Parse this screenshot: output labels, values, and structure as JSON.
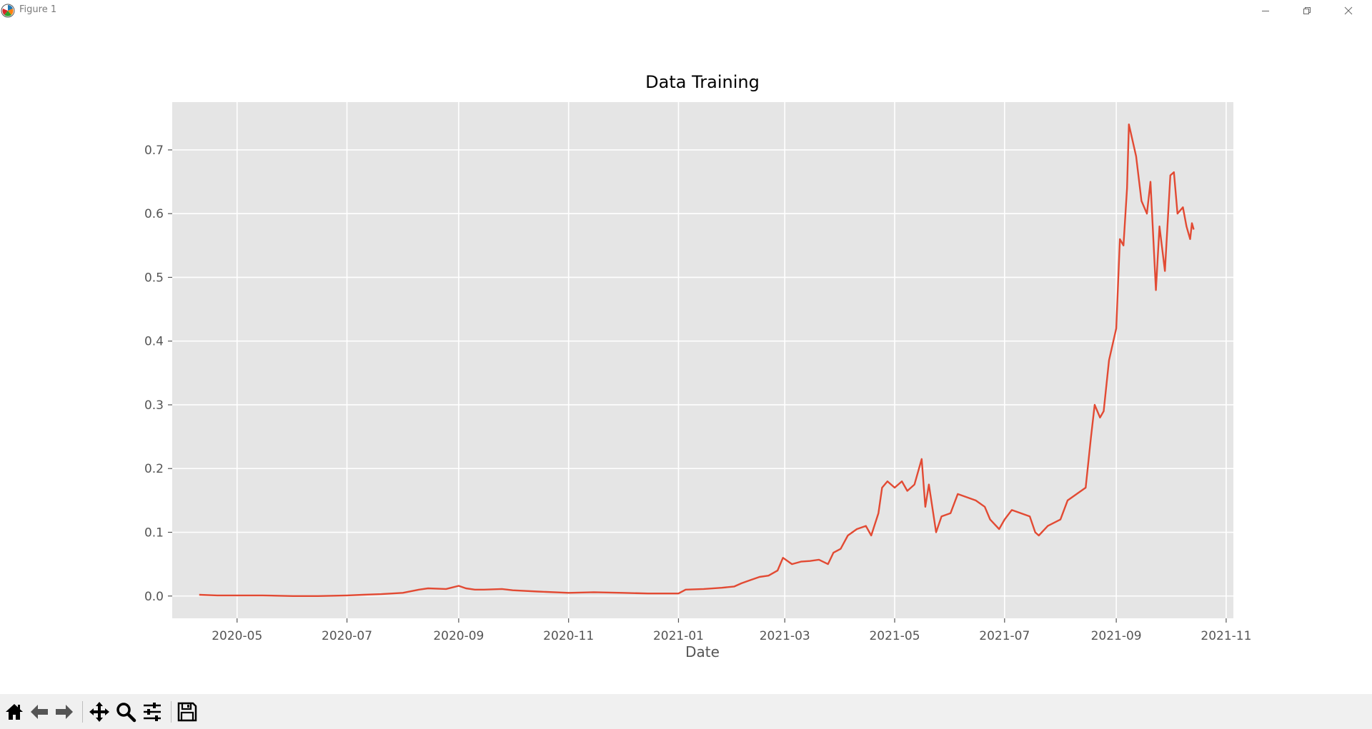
{
  "window": {
    "title": "Figure 1"
  },
  "toolbar": {
    "items": [
      {
        "name": "home-icon",
        "tooltip": "Reset original view"
      },
      {
        "name": "back-arrow-icon",
        "tooltip": "Back to previous view"
      },
      {
        "name": "forward-arrow-icon",
        "tooltip": "Forward to next view"
      },
      {
        "name": "pan-icon",
        "tooltip": "Pan axes"
      },
      {
        "name": "zoom-icon",
        "tooltip": "Zoom to rectangle"
      },
      {
        "name": "configure-subplots-icon",
        "tooltip": "Configure subplots"
      },
      {
        "name": "save-icon",
        "tooltip": "Save the figure"
      }
    ]
  },
  "chart_data": {
    "type": "line",
    "title": "Data Training",
    "xlabel": "Date",
    "ylabel": "",
    "xlim": [
      "2020-03-26",
      "2021-11-05"
    ],
    "ylim": [
      -0.035,
      0.775
    ],
    "x_ticks": [
      "2020-05-01",
      "2020-07-01",
      "2020-09-01",
      "2020-11-01",
      "2021-01-01",
      "2021-03-01",
      "2021-05-01",
      "2021-07-01",
      "2021-09-01",
      "2021-11-01"
    ],
    "x_tick_labels": [
      "2020-05",
      "2020-07",
      "2020-09",
      "2020-11",
      "2021-01",
      "2021-03",
      "2021-05",
      "2021-07",
      "2021-09",
      "2021-11"
    ],
    "y_ticks": [
      0.0,
      0.1,
      0.2,
      0.3,
      0.4,
      0.5,
      0.6,
      0.7
    ],
    "y_tick_labels": [
      "0.0",
      "0.1",
      "0.2",
      "0.3",
      "0.4",
      "0.5",
      "0.6",
      "0.7"
    ],
    "grid": true,
    "style": "ggplot",
    "line_color": "#e24a33",
    "series": [
      {
        "name": "",
        "x": [
          "2020-04-10",
          "2020-04-20",
          "2020-05-01",
          "2020-05-15",
          "2020-06-01",
          "2020-06-15",
          "2020-07-01",
          "2020-07-10",
          "2020-07-20",
          "2020-08-01",
          "2020-08-10",
          "2020-08-15",
          "2020-08-25",
          "2020-09-01",
          "2020-09-05",
          "2020-09-10",
          "2020-09-15",
          "2020-09-25",
          "2020-10-01",
          "2020-10-15",
          "2020-11-01",
          "2020-11-15",
          "2020-12-01",
          "2020-12-15",
          "2021-01-01",
          "2021-01-05",
          "2021-01-15",
          "2021-01-25",
          "2021-02-01",
          "2021-02-05",
          "2021-02-10",
          "2021-02-15",
          "2021-02-20",
          "2021-02-25",
          "2021-02-28",
          "2021-03-05",
          "2021-03-10",
          "2021-03-15",
          "2021-03-20",
          "2021-03-25",
          "2021-03-28",
          "2021-04-01",
          "2021-04-05",
          "2021-04-10",
          "2021-04-15",
          "2021-04-18",
          "2021-04-22",
          "2021-04-24",
          "2021-04-27",
          "2021-05-01",
          "2021-05-05",
          "2021-05-08",
          "2021-05-12",
          "2021-05-16",
          "2021-05-18",
          "2021-05-20",
          "2021-05-24",
          "2021-05-27",
          "2021-06-01",
          "2021-06-05",
          "2021-06-10",
          "2021-06-15",
          "2021-06-20",
          "2021-06-23",
          "2021-06-28",
          "2021-07-01",
          "2021-07-05",
          "2021-07-10",
          "2021-07-15",
          "2021-07-18",
          "2021-07-20",
          "2021-07-25",
          "2021-08-01",
          "2021-08-05",
          "2021-08-10",
          "2021-08-15",
          "2021-08-18",
          "2021-08-20",
          "2021-08-23",
          "2021-08-25",
          "2021-08-28",
          "2021-09-01",
          "2021-09-03",
          "2021-09-05",
          "2021-09-07",
          "2021-09-08",
          "2021-09-12",
          "2021-09-15",
          "2021-09-18",
          "2021-09-20",
          "2021-09-23",
          "2021-09-25",
          "2021-09-28",
          "2021-10-01",
          "2021-10-03",
          "2021-10-05",
          "2021-10-08",
          "2021-10-10",
          "2021-10-12",
          "2021-10-13",
          "2021-10-14"
        ],
        "values": [
          0.002,
          0.001,
          0.001,
          0.001,
          0.0,
          0.0,
          0.001,
          0.002,
          0.003,
          0.005,
          0.01,
          0.012,
          0.011,
          0.016,
          0.012,
          0.01,
          0.01,
          0.011,
          0.009,
          0.007,
          0.005,
          0.006,
          0.005,
          0.004,
          0.004,
          0.01,
          0.011,
          0.013,
          0.015,
          0.02,
          0.025,
          0.03,
          0.032,
          0.04,
          0.06,
          0.05,
          0.054,
          0.055,
          0.057,
          0.05,
          0.068,
          0.074,
          0.095,
          0.105,
          0.11,
          0.095,
          0.13,
          0.17,
          0.18,
          0.17,
          0.18,
          0.165,
          0.175,
          0.215,
          0.14,
          0.175,
          0.1,
          0.125,
          0.13,
          0.16,
          0.155,
          0.15,
          0.14,
          0.12,
          0.105,
          0.12,
          0.135,
          0.13,
          0.125,
          0.1,
          0.095,
          0.11,
          0.12,
          0.15,
          0.16,
          0.17,
          0.25,
          0.3,
          0.28,
          0.29,
          0.37,
          0.42,
          0.56,
          0.55,
          0.64,
          0.74,
          0.69,
          0.62,
          0.6,
          0.65,
          0.48,
          0.58,
          0.51,
          0.66,
          0.665,
          0.6,
          0.61,
          0.58,
          0.56,
          0.585,
          0.575
        ]
      }
    ]
  }
}
